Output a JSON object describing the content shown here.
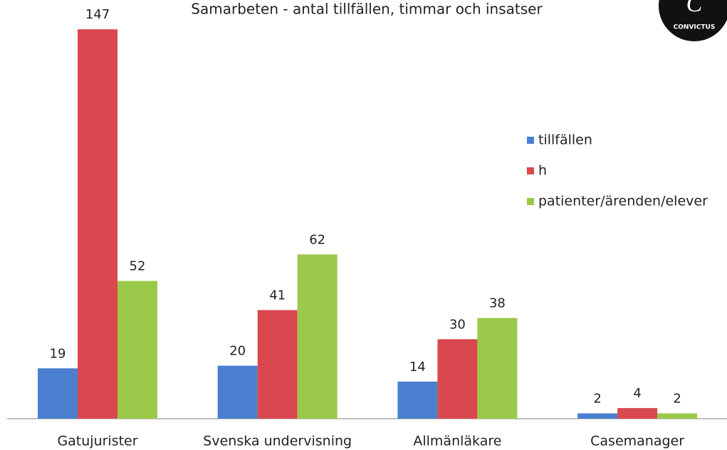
{
  "chart_data": {
    "type": "bar",
    "title": "Samarbeten - antal tillfällen, timmar och insatser",
    "categories": [
      "Gatujurister",
      "Svenska undervisning",
      "Allmänläkare",
      "Casemanager"
    ],
    "series": [
      {
        "name": "tillfällen",
        "color": "#4a7fcf",
        "values": [
          19,
          20,
          14,
          2
        ]
      },
      {
        "name": "h",
        "color": "#d9484f",
        "values": [
          147,
          41,
          30,
          4
        ]
      },
      {
        "name": "patienter/ärenden/elever",
        "color": "#9bc94a",
        "values": [
          52,
          62,
          38,
          2
        ]
      }
    ],
    "ylim": [
      0,
      150
    ],
    "legend": "right"
  },
  "logo": {
    "text": "CONVICTUS"
  }
}
